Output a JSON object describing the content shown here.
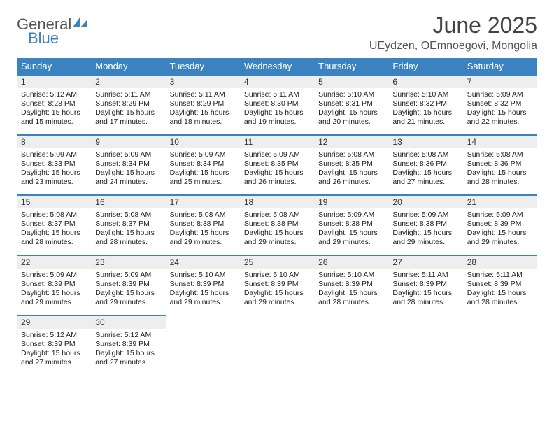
{
  "logo": {
    "word1": "General",
    "word2": "Blue"
  },
  "title": "June 2025",
  "location": "UEydzen, OEmnoegovi, Mongolia",
  "colors": {
    "header_bg": "#3b83c0",
    "header_fg": "#ffffff",
    "daynum_bg": "#eeeeee",
    "accent": "#3b83c0",
    "logo_gray": "#555555",
    "logo_blue": "#3b83c0"
  },
  "weekdays": [
    "Sunday",
    "Monday",
    "Tuesday",
    "Wednesday",
    "Thursday",
    "Friday",
    "Saturday"
  ],
  "weeks": [
    [
      {
        "n": "1",
        "sr": "5:12 AM",
        "ss": "8:28 PM",
        "dh": "15",
        "dm": "15"
      },
      {
        "n": "2",
        "sr": "5:11 AM",
        "ss": "8:29 PM",
        "dh": "15",
        "dm": "17"
      },
      {
        "n": "3",
        "sr": "5:11 AM",
        "ss": "8:29 PM",
        "dh": "15",
        "dm": "18"
      },
      {
        "n": "4",
        "sr": "5:11 AM",
        "ss": "8:30 PM",
        "dh": "15",
        "dm": "19"
      },
      {
        "n": "5",
        "sr": "5:10 AM",
        "ss": "8:31 PM",
        "dh": "15",
        "dm": "20"
      },
      {
        "n": "6",
        "sr": "5:10 AM",
        "ss": "8:32 PM",
        "dh": "15",
        "dm": "21"
      },
      {
        "n": "7",
        "sr": "5:09 AM",
        "ss": "8:32 PM",
        "dh": "15",
        "dm": "22"
      }
    ],
    [
      {
        "n": "8",
        "sr": "5:09 AM",
        "ss": "8:33 PM",
        "dh": "15",
        "dm": "23"
      },
      {
        "n": "9",
        "sr": "5:09 AM",
        "ss": "8:34 PM",
        "dh": "15",
        "dm": "24"
      },
      {
        "n": "10",
        "sr": "5:09 AM",
        "ss": "8:34 PM",
        "dh": "15",
        "dm": "25"
      },
      {
        "n": "11",
        "sr": "5:09 AM",
        "ss": "8:35 PM",
        "dh": "15",
        "dm": "26"
      },
      {
        "n": "12",
        "sr": "5:08 AM",
        "ss": "8:35 PM",
        "dh": "15",
        "dm": "26"
      },
      {
        "n": "13",
        "sr": "5:08 AM",
        "ss": "8:36 PM",
        "dh": "15",
        "dm": "27"
      },
      {
        "n": "14",
        "sr": "5:08 AM",
        "ss": "8:36 PM",
        "dh": "15",
        "dm": "28"
      }
    ],
    [
      {
        "n": "15",
        "sr": "5:08 AM",
        "ss": "8:37 PM",
        "dh": "15",
        "dm": "28"
      },
      {
        "n": "16",
        "sr": "5:08 AM",
        "ss": "8:37 PM",
        "dh": "15",
        "dm": "28"
      },
      {
        "n": "17",
        "sr": "5:08 AM",
        "ss": "8:38 PM",
        "dh": "15",
        "dm": "29"
      },
      {
        "n": "18",
        "sr": "5:08 AM",
        "ss": "8:38 PM",
        "dh": "15",
        "dm": "29"
      },
      {
        "n": "19",
        "sr": "5:09 AM",
        "ss": "8:38 PM",
        "dh": "15",
        "dm": "29"
      },
      {
        "n": "20",
        "sr": "5:09 AM",
        "ss": "8:38 PM",
        "dh": "15",
        "dm": "29"
      },
      {
        "n": "21",
        "sr": "5:09 AM",
        "ss": "8:39 PM",
        "dh": "15",
        "dm": "29"
      }
    ],
    [
      {
        "n": "22",
        "sr": "5:09 AM",
        "ss": "8:39 PM",
        "dh": "15",
        "dm": "29"
      },
      {
        "n": "23",
        "sr": "5:09 AM",
        "ss": "8:39 PM",
        "dh": "15",
        "dm": "29"
      },
      {
        "n": "24",
        "sr": "5:10 AM",
        "ss": "8:39 PM",
        "dh": "15",
        "dm": "29"
      },
      {
        "n": "25",
        "sr": "5:10 AM",
        "ss": "8:39 PM",
        "dh": "15",
        "dm": "29"
      },
      {
        "n": "26",
        "sr": "5:10 AM",
        "ss": "8:39 PM",
        "dh": "15",
        "dm": "28"
      },
      {
        "n": "27",
        "sr": "5:11 AM",
        "ss": "8:39 PM",
        "dh": "15",
        "dm": "28"
      },
      {
        "n": "28",
        "sr": "5:11 AM",
        "ss": "8:39 PM",
        "dh": "15",
        "dm": "28"
      }
    ],
    [
      {
        "n": "29",
        "sr": "5:12 AM",
        "ss": "8:39 PM",
        "dh": "15",
        "dm": "27"
      },
      {
        "n": "30",
        "sr": "5:12 AM",
        "ss": "8:39 PM",
        "dh": "15",
        "dm": "27"
      },
      null,
      null,
      null,
      null,
      null
    ]
  ],
  "labels": {
    "sunrise": "Sunrise:",
    "sunset": "Sunset:",
    "daylight": "Daylight:",
    "hours": "hours",
    "and": "and",
    "minutes": "minutes."
  }
}
